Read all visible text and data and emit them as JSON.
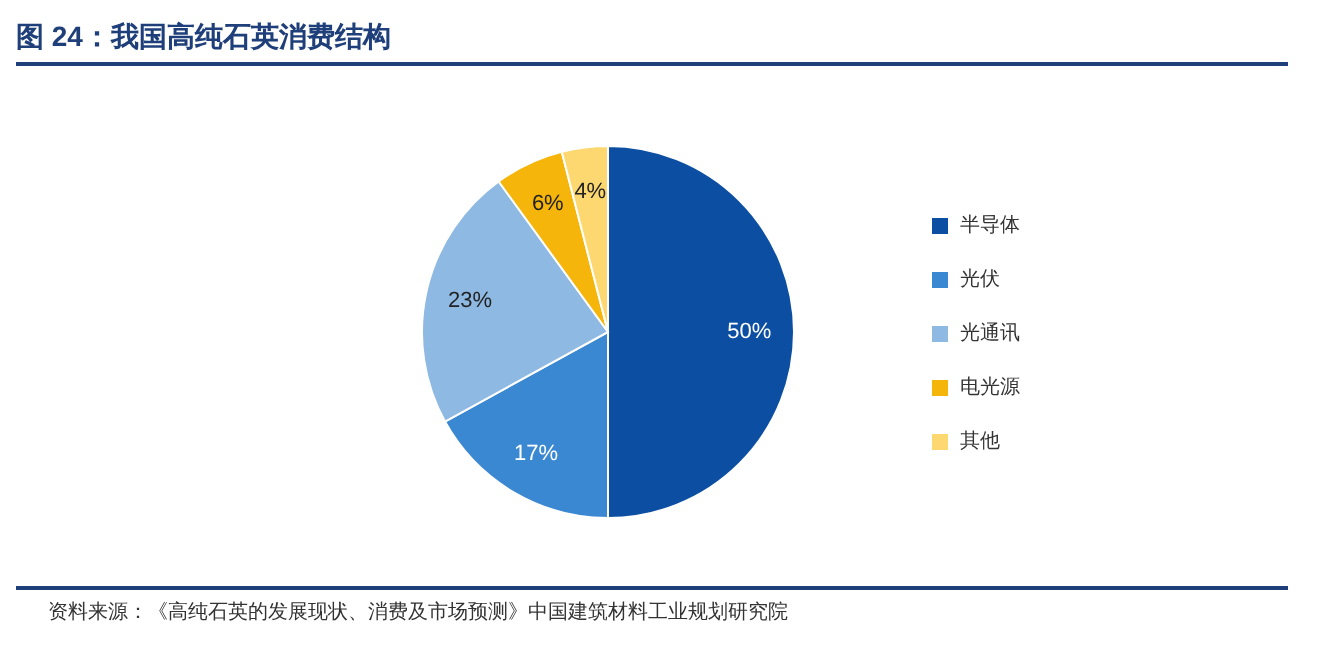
{
  "chart_data": {
    "type": "pie",
    "title": "图 24：我国高纯石英消费结构",
    "categories": [
      "半导体",
      "光伏",
      "光通讯",
      "电光源",
      "其他"
    ],
    "values": [
      50,
      17,
      23,
      6,
      4
    ],
    "colors": [
      "#0b4ea2",
      "#3a88d2",
      "#8db9e2",
      "#f5b50a",
      "#fdd870"
    ],
    "value_labels": [
      "50%",
      "17%",
      "23%",
      "6%",
      "4%"
    ],
    "legend": "right",
    "annotations": [
      "资料来源：《高纯石英的发展现状、消费及市场预测》中国建筑材料工业规划研究院"
    ]
  }
}
